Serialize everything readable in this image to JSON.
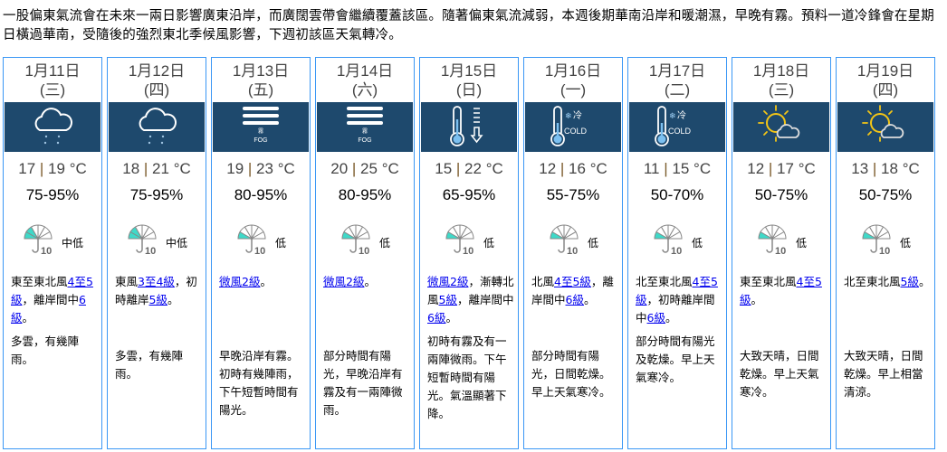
{
  "summary": "一股偏東氣流會在未來一兩日影響廣東沿岸，而廣闊雲帶會繼續覆蓋該區。隨著偏東氣流減弱，本週後期華南沿岸和暖潮濕，早晚有霧。預料一道冷鋒會在星期日橫過華南，受隨後的強烈東北季候風影響，下週初該區天氣轉冷。",
  "colors": {
    "border": "#3a97f5",
    "icon_bg": "#1e496d",
    "link": "#0000ee",
    "psr_fill": "#3fd9c8"
  },
  "days": [
    {
      "date": "1月11日",
      "weekday": "(三)",
      "icon": "cloud-rain-icon",
      "temp_min": "17",
      "temp_max": "19",
      "temp_unit": "°C",
      "humidity": "75-95%",
      "psr": "中低",
      "psr_level": 2,
      "wind": [
        {
          "t": "東至東北風"
        },
        {
          "t": "4至5級",
          "link": true
        },
        {
          "t": "，離岸間中"
        },
        {
          "t": "6級",
          "link": true
        },
        {
          "t": "。"
        }
      ],
      "weather": "多雲，有幾陣雨。"
    },
    {
      "date": "1月12日",
      "weekday": "(四)",
      "icon": "cloud-rain-icon",
      "temp_min": "18",
      "temp_max": "21",
      "temp_unit": "°C",
      "humidity": "75-95%",
      "psr": "中低",
      "psr_level": 2,
      "wind": [
        {
          "t": "東風"
        },
        {
          "t": "3至4級",
          "link": true
        },
        {
          "t": "，初時離岸"
        },
        {
          "t": "5級",
          "link": true
        },
        {
          "t": "。"
        }
      ],
      "weather": "多雲，有幾陣雨。"
    },
    {
      "date": "1月13日",
      "weekday": "(五)",
      "icon": "fog-icon",
      "temp_min": "19",
      "temp_max": "23",
      "temp_unit": "°C",
      "humidity": "80-95%",
      "psr": "低",
      "psr_level": 1,
      "wind": [
        {
          "t": "微風2級",
          "link": true
        },
        {
          "t": "。"
        }
      ],
      "weather": "早晚沿岸有霧。初時有幾陣雨，下午短暫時間有陽光。"
    },
    {
      "date": "1月14日",
      "weekday": "(六)",
      "icon": "fog-icon",
      "temp_min": "20",
      "temp_max": "25",
      "temp_unit": "°C",
      "humidity": "80-95%",
      "psr": "低",
      "psr_level": 1,
      "wind": [
        {
          "t": "微風2級",
          "link": true
        },
        {
          "t": "。"
        }
      ],
      "weather": "部分時間有陽光，早晚沿岸有霧及有一兩陣微雨。"
    },
    {
      "date": "1月15日",
      "weekday": "(日)",
      "icon": "temperature-drop-icon",
      "temp_min": "15",
      "temp_max": "22",
      "temp_unit": "°C",
      "humidity": "65-95%",
      "psr": "低",
      "psr_level": 1,
      "wind": [
        {
          "t": "微風2級",
          "link": true
        },
        {
          "t": "，漸轉北風"
        },
        {
          "t": "5級",
          "link": true
        },
        {
          "t": "，離岸間中"
        },
        {
          "t": "6級",
          "link": true
        },
        {
          "t": "。"
        }
      ],
      "weather": "初時有霧及有一兩陣微雨。下午短暫時間有陽光。氣溫顯著下降。"
    },
    {
      "date": "1月16日",
      "weekday": "(一)",
      "icon": "cold-icon",
      "temp_min": "12",
      "temp_max": "16",
      "temp_unit": "°C",
      "humidity": "55-75%",
      "psr": "低",
      "psr_level": 1,
      "wind": [
        {
          "t": "北風"
        },
        {
          "t": "4至5級",
          "link": true
        },
        {
          "t": "，離岸間中"
        },
        {
          "t": "6級",
          "link": true
        },
        {
          "t": "。"
        }
      ],
      "weather": "部分時間有陽光，日間乾燥。早上天氣寒冷。"
    },
    {
      "date": "1月17日",
      "weekday": "(二)",
      "icon": "cold-icon",
      "temp_min": "11",
      "temp_max": "15",
      "temp_unit": "°C",
      "humidity": "50-70%",
      "psr": "低",
      "psr_level": 1,
      "wind": [
        {
          "t": "北至東北風"
        },
        {
          "t": "4至5級",
          "link": true
        },
        {
          "t": "，初時離岸間中"
        },
        {
          "t": "6級",
          "link": true
        },
        {
          "t": "。"
        }
      ],
      "weather": "部分時間有陽光及乾燥。早上天氣寒冷。"
    },
    {
      "date": "1月18日",
      "weekday": "(三)",
      "icon": "sunny-periods-icon",
      "temp_min": "12",
      "temp_max": "17",
      "temp_unit": "°C",
      "humidity": "50-75%",
      "psr": "低",
      "psr_level": 1,
      "wind": [
        {
          "t": "東至東北風"
        },
        {
          "t": "4至5級",
          "link": true
        },
        {
          "t": "。"
        }
      ],
      "weather": "大致天晴，日間乾燥。早上天氣寒冷。"
    },
    {
      "date": "1月19日",
      "weekday": "(四)",
      "icon": "sunny-periods-icon",
      "temp_min": "13",
      "temp_max": "18",
      "temp_unit": "°C",
      "humidity": "50-75%",
      "psr": "低",
      "psr_level": 1,
      "wind": [
        {
          "t": "北至東北風"
        },
        {
          "t": "5級",
          "link": true
        },
        {
          "t": "。"
        }
      ],
      "weather": "大致天晴，日間乾燥。早上相當清涼。"
    }
  ]
}
